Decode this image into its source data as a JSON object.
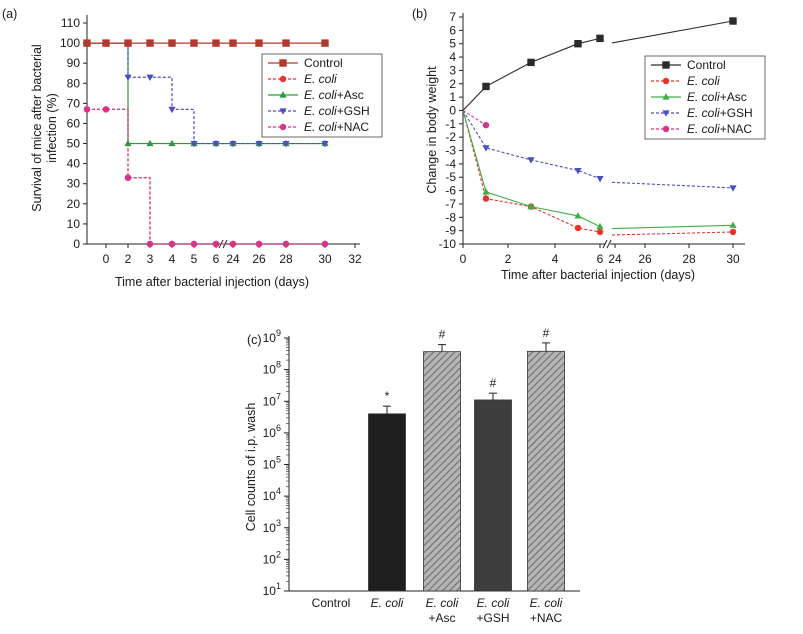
{
  "figure": {
    "panels": [
      "(a)",
      "(b)",
      "(c)"
    ]
  },
  "colors": {
    "control": "#2b2b2b",
    "ecoli": "#e8322a",
    "asc": "#2e9a3c",
    "gsh": "#4a4fc1",
    "nac": "#d6338a",
    "bar_dark": "#222222",
    "bar_hatch": "#8a8a8a"
  },
  "chart_data": [
    {
      "panel": "(a)",
      "type": "line",
      "step": true,
      "xlabel": "Time after bacterial injection (days)",
      "ylabel": "Survival of mice after bacterial infection (%)",
      "ylabel_lines": [
        "Survival of mice after bacterial",
        "infection (%)"
      ],
      "xlim": [
        -2,
        32
      ],
      "x_break": [
        6,
        24
      ],
      "xticks": [
        "0",
        "2",
        "3",
        "4",
        "5",
        "6",
        "24",
        "26",
        "28",
        "30",
        "32"
      ],
      "yticks": [
        "0",
        "10",
        "20",
        "30",
        "40",
        "50",
        "60",
        "70",
        "80",
        "90",
        "100",
        "110"
      ],
      "ylim": [
        0,
        110
      ],
      "legend_position": "right",
      "series": [
        {
          "name": "Control",
          "prefix": "",
          "suffix": "Control",
          "marker": "square",
          "dash": false,
          "color": "#b03a2e",
          "x": [
            -2,
            0,
            2,
            3,
            4,
            5,
            6,
            24,
            26,
            28,
            30
          ],
          "y": [
            100,
            100,
            100,
            100,
            100,
            100,
            100,
            100,
            100,
            100,
            100
          ]
        },
        {
          "name": "E. coli",
          "prefix": "E. coli",
          "suffix": "",
          "marker": "circle",
          "dash": true,
          "color": "#e8322a",
          "x": [
            -2,
            0,
            2,
            3,
            4,
            5,
            6,
            24,
            26,
            28,
            30
          ],
          "y": [
            67,
            67,
            33,
            0,
            0,
            0,
            0,
            0,
            0,
            0,
            0
          ]
        },
        {
          "name": "E. coli+Asc",
          "prefix": "E. coli",
          "suffix": "+Asc",
          "marker": "triangle",
          "dash": false,
          "color": "#2e9a3c",
          "x": [
            -2,
            0,
            2,
            3,
            4,
            5,
            6,
            24,
            26,
            28,
            30
          ],
          "y": [
            100,
            100,
            50,
            50,
            50,
            50,
            50,
            50,
            50,
            50,
            50
          ]
        },
        {
          "name": "E. coli+GSH",
          "prefix": "E. coli",
          "suffix": "+GSH",
          "marker": "triangle-down",
          "dash": true,
          "color": "#4a4fc1",
          "x": [
            -2,
            0,
            2,
            3,
            4,
            5,
            6,
            24,
            26,
            28,
            30
          ],
          "y": [
            100,
            100,
            83,
            83,
            67,
            50,
            50,
            50,
            50,
            50,
            50
          ]
        },
        {
          "name": "E. coli+NAC",
          "prefix": "E. coli",
          "suffix": "+NAC",
          "marker": "circle",
          "dash": true,
          "color": "#d6338a",
          "x": [
            -2,
            0,
            2,
            3,
            4,
            5,
            6,
            24,
            26,
            28,
            30
          ],
          "y": [
            67,
            67,
            33,
            0,
            0,
            0,
            0,
            0,
            0,
            0,
            0
          ]
        }
      ]
    },
    {
      "panel": "(b)",
      "type": "line",
      "xlabel": "Time after bacterial injection (days)",
      "ylabel": "Change in body weight",
      "xlim": [
        0,
        30
      ],
      "x_break": [
        6,
        24
      ],
      "xticks": [
        "0",
        "2",
        "4",
        "6",
        "24",
        "26",
        "28",
        "30"
      ],
      "yticks": [
        "-10",
        "-9",
        "-8",
        "-7",
        "-6",
        "-5",
        "-4",
        "-3",
        "-2",
        "-1",
        "0",
        "1",
        "2",
        "3",
        "4",
        "5",
        "6",
        "7"
      ],
      "ylim": [
        -10,
        7
      ],
      "legend_position": "right",
      "series": [
        {
          "name": "Control",
          "prefix": "",
          "suffix": "Control",
          "marker": "square",
          "dash": false,
          "color": "#2b2b2b",
          "x": [
            0,
            1,
            3,
            5,
            6,
            30
          ],
          "y": [
            0,
            1.8,
            3.6,
            5.0,
            5.4,
            6.7
          ]
        },
        {
          "name": "E. coli",
          "prefix": "E. coli",
          "suffix": "",
          "marker": "circle",
          "dash": true,
          "color": "#e8322a",
          "x": [
            0,
            1,
            3,
            5,
            6,
            30
          ],
          "y": [
            0,
            -6.6,
            -7.2,
            -8.8,
            -9.1,
            -9.1
          ]
        },
        {
          "name": "E. coli+Asc",
          "prefix": "E. coli",
          "suffix": "+Asc",
          "marker": "triangle",
          "dash": false,
          "color": "#3fae47",
          "x": [
            0,
            1,
            3,
            5,
            6,
            30
          ],
          "y": [
            0,
            -6.1,
            -7.2,
            -7.9,
            -8.7,
            -8.6
          ]
        },
        {
          "name": "E. coli+GSH",
          "prefix": "E. coli",
          "suffix": "+GSH",
          "marker": "triangle-down",
          "dash": true,
          "color": "#4a4fc1",
          "x": [
            0,
            1,
            3,
            5,
            6,
            30
          ],
          "y": [
            0,
            -2.8,
            -3.7,
            -4.5,
            -5.1,
            -5.8
          ]
        },
        {
          "name": "E. coli+NAC",
          "prefix": "E. coli",
          "suffix": "+NAC",
          "marker": "circle",
          "dash": true,
          "color": "#d6338a",
          "x": [
            0,
            1
          ],
          "y": [
            0,
            -1.1
          ]
        }
      ]
    },
    {
      "panel": "(c)",
      "type": "bar",
      "yscale": "log",
      "ylabel": "Cell counts of i.p. wash",
      "ylim_exp": [
        1,
        9
      ],
      "ytick_base": "10",
      "ytick_exps": [
        "1",
        "2",
        "3",
        "4",
        "5",
        "6",
        "7",
        "8",
        "9"
      ],
      "categories": [
        {
          "line1": "Control",
          "italic": false,
          "line2": ""
        },
        {
          "line1": "E. coli",
          "italic": true,
          "line2": ""
        },
        {
          "line1": "E. coli",
          "italic": true,
          "line2": "+Asc"
        },
        {
          "line1": "E. coli",
          "italic": true,
          "line2": "+GSH"
        },
        {
          "line1": "E. coli",
          "italic": true,
          "line2": "+NAC"
        }
      ],
      "values": [
        null,
        4000000,
        370000000,
        11000000,
        380000000
      ],
      "errors_upper": [
        null,
        7000000,
        620000000,
        18000000,
        700000000
      ],
      "fills": [
        "none",
        "solid",
        "hatch",
        "solid-dark",
        "hatch"
      ],
      "annotations": [
        "",
        "*",
        "#",
        "#",
        "#"
      ]
    }
  ]
}
